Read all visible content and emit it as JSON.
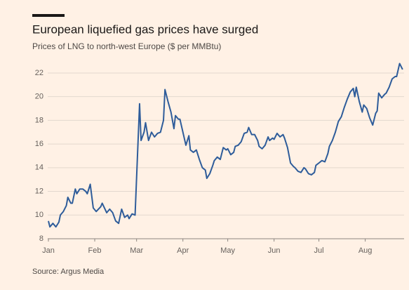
{
  "chart_data": {
    "type": "line",
    "title": "European liquefied gas prices have surged",
    "subtitle": "Prices of LNG to north-west Europe ($ per MMBtu)",
    "source": "Source: Argus Media",
    "color": "#2e5c9a",
    "grid": true,
    "x": [
      0,
      1,
      3,
      5,
      7,
      8,
      10,
      12,
      13,
      15,
      16,
      18,
      19,
      21,
      23,
      25,
      26,
      28,
      30,
      32,
      35,
      36,
      39,
      41,
      43,
      45,
      47,
      49,
      51,
      53,
      54,
      56,
      58,
      61,
      62,
      64,
      65,
      67,
      69,
      71,
      73,
      75,
      77,
      78,
      80,
      82,
      84,
      85,
      87,
      88,
      90,
      92,
      94,
      95,
      97,
      99,
      101,
      103,
      105,
      106,
      108,
      110,
      111,
      113,
      115,
      117,
      119,
      120,
      122,
      124,
      125,
      127,
      129,
      131,
      133,
      134,
      136,
      138,
      140,
      141,
      143,
      145,
      147,
      148,
      150,
      151,
      153,
      155,
      157,
      158,
      160,
      162,
      164,
      165,
      167,
      169,
      171,
      172,
      174,
      176,
      178,
      179,
      181,
      183,
      185,
      187,
      188,
      190,
      192,
      194,
      196,
      198,
      200,
      202,
      204,
      205,
      206,
      208,
      210,
      211,
      213,
      215,
      217,
      219,
      220,
      221,
      223,
      225,
      226,
      228,
      230,
      232,
      233,
      235,
      237
    ],
    "values": [
      9.5,
      9.0,
      9.3,
      9.0,
      9.4,
      10.0,
      10.3,
      10.8,
      11.5,
      11.0,
      11.0,
      12.2,
      11.8,
      12.2,
      12.2,
      12.0,
      11.8,
      12.6,
      10.6,
      10.3,
      10.7,
      11.0,
      10.2,
      10.5,
      10.2,
      9.5,
      9.3,
      10.5,
      9.8,
      10.0,
      9.7,
      10.1,
      10.0,
      19.4,
      16.3,
      17.0,
      17.8,
      16.3,
      17.0,
      16.6,
      16.9,
      17.0,
      18.0,
      20.6,
      19.6,
      18.7,
      17.3,
      18.4,
      18.1,
      18.1,
      17.0,
      15.9,
      16.7,
      15.5,
      15.3,
      15.5,
      14.7,
      14.0,
      13.8,
      13.1,
      13.5,
      14.2,
      14.6,
      14.9,
      14.7,
      15.7,
      15.5,
      15.6,
      15.1,
      15.3,
      15.8,
      15.9,
      16.2,
      16.9,
      17.0,
      17.4,
      16.8,
      16.8,
      16.3,
      15.8,
      15.6,
      15.9,
      16.6,
      16.3,
      16.5,
      16.4,
      16.9,
      16.6,
      16.8,
      16.5,
      15.7,
      14.4,
      14.1,
      14.0,
      13.7,
      13.6,
      14.0,
      13.9,
      13.5,
      13.4,
      13.6,
      14.2,
      14.4,
      14.6,
      14.5,
      15.2,
      15.8,
      16.3,
      17.0,
      17.9,
      18.3,
      19.1,
      19.8,
      20.4,
      20.7,
      20.0,
      20.8,
      19.6,
      18.7,
      19.3,
      19.0,
      18.2,
      17.6,
      18.6,
      18.8,
      20.3,
      19.9,
      20.2,
      20.3,
      20.8,
      21.5,
      21.7,
      21.7,
      22.8,
      22.3
    ],
    "xlim": [
      0,
      238
    ],
    "xticks": [
      {
        "value": 0,
        "label": "Jan"
      },
      {
        "value": 31,
        "label": "Feb"
      },
      {
        "value": 59,
        "label": "Mar"
      },
      {
        "value": 90,
        "label": "Apr"
      },
      {
        "value": 120,
        "label": "May"
      },
      {
        "value": 151,
        "label": "Jun"
      },
      {
        "value": 181,
        "label": "Jul"
      },
      {
        "value": 212,
        "label": "Aug"
      }
    ],
    "ylim": [
      8,
      23
    ],
    "yticks": [
      8,
      10,
      12,
      14,
      16,
      18,
      20,
      22
    ]
  }
}
